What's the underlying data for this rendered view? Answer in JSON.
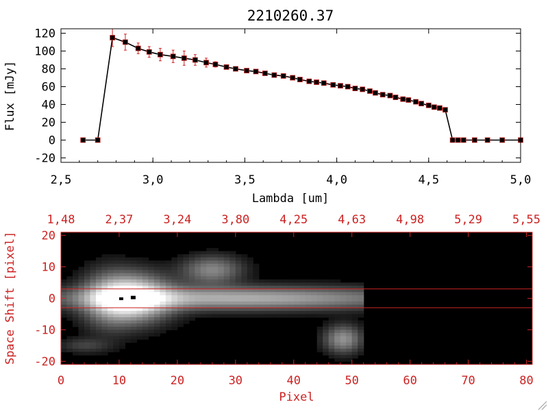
{
  "colors": {
    "axis_top": "#000000",
    "axis_bottom": "#cc2222",
    "errorbar": "#cc2222",
    "marker": "#000000",
    "marker_edge": "#cc2222",
    "line": "#000000",
    "image_bg": "#000000"
  },
  "chart_data": [
    {
      "type": "line",
      "title": "2210260.37",
      "xlabel": "Lambda [um]",
      "ylabel": "Flux [mJy]",
      "xlim": [
        2.5,
        5.0
      ],
      "ylim": [
        -25,
        125
      ],
      "xticks": [
        "2.5",
        "3.0",
        "3.5",
        "4.0",
        "4.5",
        "5.0"
      ],
      "yticks": [
        "-20",
        "0",
        "20",
        "40",
        "60",
        "80",
        "100",
        "120"
      ],
      "grid": false,
      "series": [
        {
          "x": [
            2.62,
            2.7,
            2.78,
            2.85,
            2.92,
            2.98,
            3.04,
            3.11,
            3.17,
            3.23,
            3.29,
            3.34,
            3.4,
            3.45,
            3.51,
            3.56,
            3.61,
            3.66,
            3.71,
            3.76,
            3.8,
            3.85,
            3.89,
            3.93,
            3.98,
            4.02,
            4.06,
            4.1,
            4.14,
            4.18,
            4.21,
            4.25,
            4.29,
            4.32,
            4.36,
            4.39,
            4.43,
            4.46,
            4.5,
            4.53,
            4.56,
            4.59,
            4.63,
            4.66,
            4.69,
            4.75,
            4.82,
            4.9,
            5.0
          ],
          "y": [
            0,
            0,
            115,
            110,
            103,
            99,
            96,
            94,
            92,
            90,
            87,
            85,
            82,
            80,
            78,
            77,
            75,
            73,
            72,
            70,
            68,
            66,
            65,
            64,
            62,
            61,
            60,
            58,
            57,
            55,
            53,
            51,
            50,
            48,
            46,
            45,
            43,
            41,
            39,
            37,
            36,
            34,
            0,
            0,
            0,
            0,
            0,
            0,
            0
          ],
          "yerr": [
            0,
            0,
            10,
            9,
            6,
            6,
            7,
            7,
            8,
            6,
            5,
            3,
            2,
            1,
            1,
            1,
            1,
            1,
            1,
            1,
            1,
            1,
            1,
            1,
            1,
            1,
            1,
            1,
            1,
            1,
            1,
            1,
            1,
            1,
            1,
            1,
            1,
            1,
            1,
            1,
            1,
            1,
            0,
            0,
            0,
            0,
            0,
            0,
            0
          ]
        }
      ]
    },
    {
      "type": "heatmap",
      "xlabel": "Pixel",
      "ylabel": "Space Shift [pixel]",
      "xlim": [
        0,
        81
      ],
      "ylim": [
        -21,
        21
      ],
      "xticks": [
        "0",
        "10",
        "20",
        "30",
        "40",
        "50",
        "60",
        "70",
        "80"
      ],
      "yticks": [
        "-20",
        "-10",
        "0",
        "10",
        "20"
      ],
      "top_ticks": [
        "1.48",
        "2.37",
        "3.24",
        "3.80",
        "4.25",
        "4.63",
        "4.98",
        "5.29",
        "5.55"
      ],
      "extraction_lines": [
        3,
        -3
      ],
      "sources": [
        {
          "cx": 12,
          "cy": 0,
          "sx": 4.5,
          "sy": 5,
          "amp": 1.0
        },
        {
          "cx": 30,
          "cy": 0,
          "sx": 22,
          "sy": 2.5,
          "amp": 0.62
        },
        {
          "cx": 26,
          "cy": 9,
          "sx": 3.5,
          "sy": 3,
          "amp": 0.45
        },
        {
          "cx": 48.5,
          "cy": -13,
          "sx": 2.2,
          "sy": 3,
          "amp": 0.5
        },
        {
          "cx": 4,
          "cy": -15,
          "sx": 3,
          "sy": 1.6,
          "amp": 0.18
        },
        {
          "cx": 8,
          "cy": -1,
          "sx": 3,
          "sy": 7,
          "amp": 0.22
        }
      ],
      "cutoff_pixel": 51
    }
  ]
}
